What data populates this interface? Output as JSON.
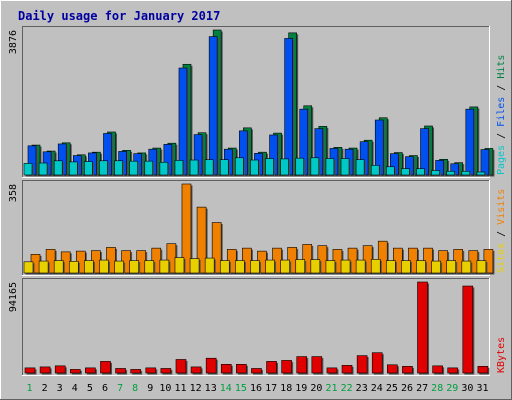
{
  "chart_data": {
    "type": "bar",
    "title": "Daily usage for January 2017",
    "categories": [
      "1",
      "2",
      "3",
      "4",
      "5",
      "6",
      "7",
      "8",
      "9",
      "10",
      "11",
      "12",
      "13",
      "14",
      "15",
      "16",
      "17",
      "18",
      "19",
      "20",
      "21",
      "22",
      "23",
      "24",
      "25",
      "26",
      "27",
      "28",
      "29",
      "30",
      "31"
    ],
    "weekend_days": [
      "1",
      "7",
      "8",
      "14",
      "15",
      "21",
      "22",
      "28",
      "29"
    ],
    "panels": [
      {
        "id": "hits",
        "max_label": "3876",
        "ymax": 3876,
        "axis_labels": [
          {
            "text": "Pages",
            "color": "#00c8c8"
          },
          {
            "text": " / ",
            "color": "#000000"
          },
          {
            "text": "Files",
            "color": "#0050f0"
          },
          {
            "text": " / ",
            "color": "#000000"
          },
          {
            "text": "Hits",
            "color": "#008040"
          }
        ],
        "series": [
          {
            "name": "Hits",
            "color": "#008040",
            "values": [
              800,
              640,
              860,
              540,
              610,
              1150,
              660,
              590,
              720,
              850,
              2960,
              1130,
              3876,
              720,
              1260,
              610,
              1120,
              3800,
              1850,
              1300,
              740,
              720,
              930,
              1530,
              600,
              520,
              1310,
              420,
              330,
              1820,
              710
            ]
          },
          {
            "name": "Files",
            "color": "#0050f0",
            "values": [
              780,
              620,
              830,
              520,
              590,
              1110,
              630,
              570,
              690,
              820,
              2860,
              1080,
              3700,
              690,
              1180,
              580,
              1070,
              3650,
              1760,
              1240,
              710,
              690,
              890,
              1470,
              570,
              490,
              1240,
              390,
              300,
              1760,
              680
            ]
          },
          {
            "name": "Pages",
            "color": "#00c8c8",
            "values": [
              310,
              320,
              380,
              350,
              360,
              380,
              380,
              370,
              370,
              340,
              390,
              400,
              410,
              410,
              460,
              400,
              440,
              430,
              450,
              460,
              440,
              440,
              410,
              260,
              220,
              170,
              170,
              120,
              100,
              100,
              80
            ]
          }
        ]
      },
      {
        "id": "visits",
        "max_label": "358",
        "ymax": 358,
        "axis_labels": [
          {
            "text": "Sites",
            "color": "#e8d000"
          },
          {
            "text": " / ",
            "color": "#000000"
          },
          {
            "text": "Visits",
            "color": "#f08000"
          }
        ],
        "series": [
          {
            "name": "Visits",
            "color": "#f08000",
            "values": [
              75,
              95,
              85,
              88,
              90,
              103,
              90,
              90,
              100,
              118,
              358,
              265,
              203,
              95,
              100,
              88,
              100,
              103,
              115,
              110,
              95,
              100,
              110,
              128,
              100,
              100,
              100,
              90,
              95,
              90,
              95
            ]
          },
          {
            "name": "Sites",
            "color": "#e8d000",
            "values": [
              45,
              48,
              50,
              47,
              50,
              52,
              48,
              50,
              50,
              52,
              62,
              58,
              60,
              50,
              50,
              50,
              52,
              52,
              54,
              54,
              50,
              52,
              52,
              55,
              50,
              50,
              50,
              48,
              50,
              48,
              50
            ]
          }
        ]
      },
      {
        "id": "kbytes",
        "max_label": "94165",
        "ymax": 94165,
        "axis_labels": [
          {
            "text": "KBytes",
            "color": "#e00000"
          }
        ],
        "series": [
          {
            "name": "KBytes",
            "color": "#e00000",
            "values": [
              5300,
              6300,
              7400,
              3700,
              5300,
              12000,
              4700,
              3700,
              5300,
              4700,
              14000,
              6300,
              15300,
              9000,
              9000,
              4700,
              12000,
              13000,
              17000,
              17000,
              5300,
              7900,
              18000,
              21000,
              8500,
              6900,
              94165,
              7400,
              5300,
              90000,
              6900
            ]
          }
        ]
      }
    ]
  }
}
